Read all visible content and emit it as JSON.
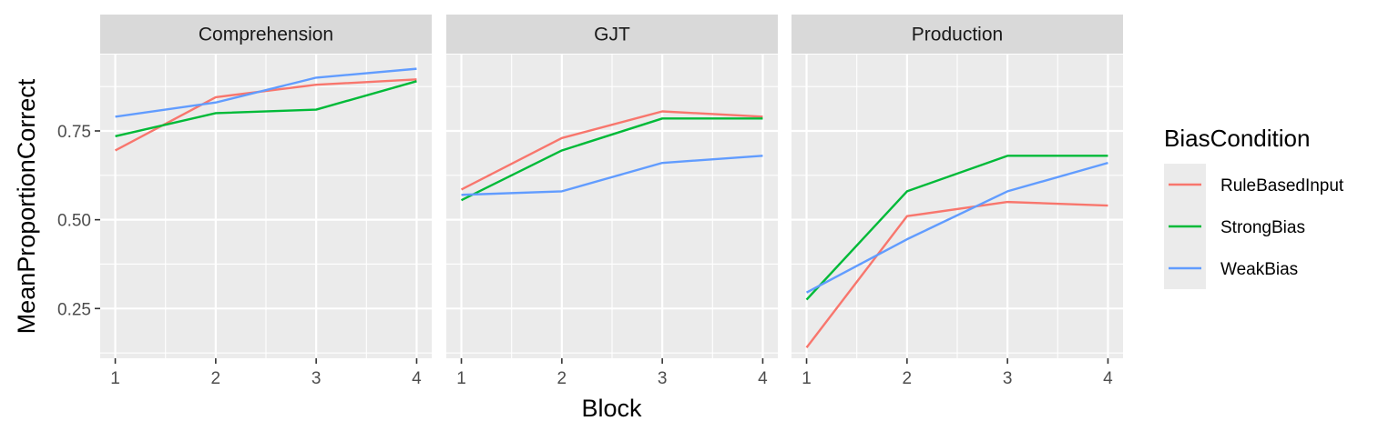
{
  "chart_data": {
    "type": "line",
    "xlabel": "Block",
    "ylabel": "MeanProportionCorrect",
    "x": [
      1,
      2,
      3,
      4
    ],
    "x_ticks": [
      "1",
      "2",
      "3",
      "4"
    ],
    "xlim": [
      0.85,
      4.15
    ],
    "y_ticks": [
      0.25,
      0.5,
      0.75
    ],
    "y_tick_labels": [
      "0.25",
      "0.50",
      "0.75"
    ],
    "ylim": [
      0.11,
      0.965
    ],
    "grid": true,
    "legend": {
      "title": "BiasCondition",
      "position": "right"
    },
    "series_info": [
      {
        "name": "RuleBasedInput",
        "color": "#F8766D"
      },
      {
        "name": "StrongBias",
        "color": "#00BA38"
      },
      {
        "name": "WeakBias",
        "color": "#619CFF"
      }
    ],
    "panels": [
      {
        "label": "Comprehension",
        "series": [
          {
            "name": "RuleBasedInput",
            "values": [
              0.695,
              0.845,
              0.88,
              0.895
            ]
          },
          {
            "name": "StrongBias",
            "values": [
              0.735,
              0.8,
              0.81,
              0.89
            ]
          },
          {
            "name": "WeakBias",
            "values": [
              0.79,
              0.83,
              0.9,
              0.925
            ]
          }
        ]
      },
      {
        "label": "GJT",
        "series": [
          {
            "name": "RuleBasedInput",
            "values": [
              0.585,
              0.73,
              0.805,
              0.79
            ]
          },
          {
            "name": "StrongBias",
            "values": [
              0.555,
              0.695,
              0.785,
              0.785
            ]
          },
          {
            "name": "WeakBias",
            "values": [
              0.57,
              0.58,
              0.66,
              0.68
            ]
          }
        ]
      },
      {
        "label": "Production",
        "series": [
          {
            "name": "RuleBasedInput",
            "values": [
              0.14,
              0.51,
              0.55,
              0.54
            ]
          },
          {
            "name": "StrongBias",
            "values": [
              0.275,
              0.58,
              0.68,
              0.68
            ]
          },
          {
            "name": "WeakBias",
            "values": [
              0.295,
              0.445,
              0.58,
              0.66
            ]
          }
        ]
      }
    ]
  }
}
